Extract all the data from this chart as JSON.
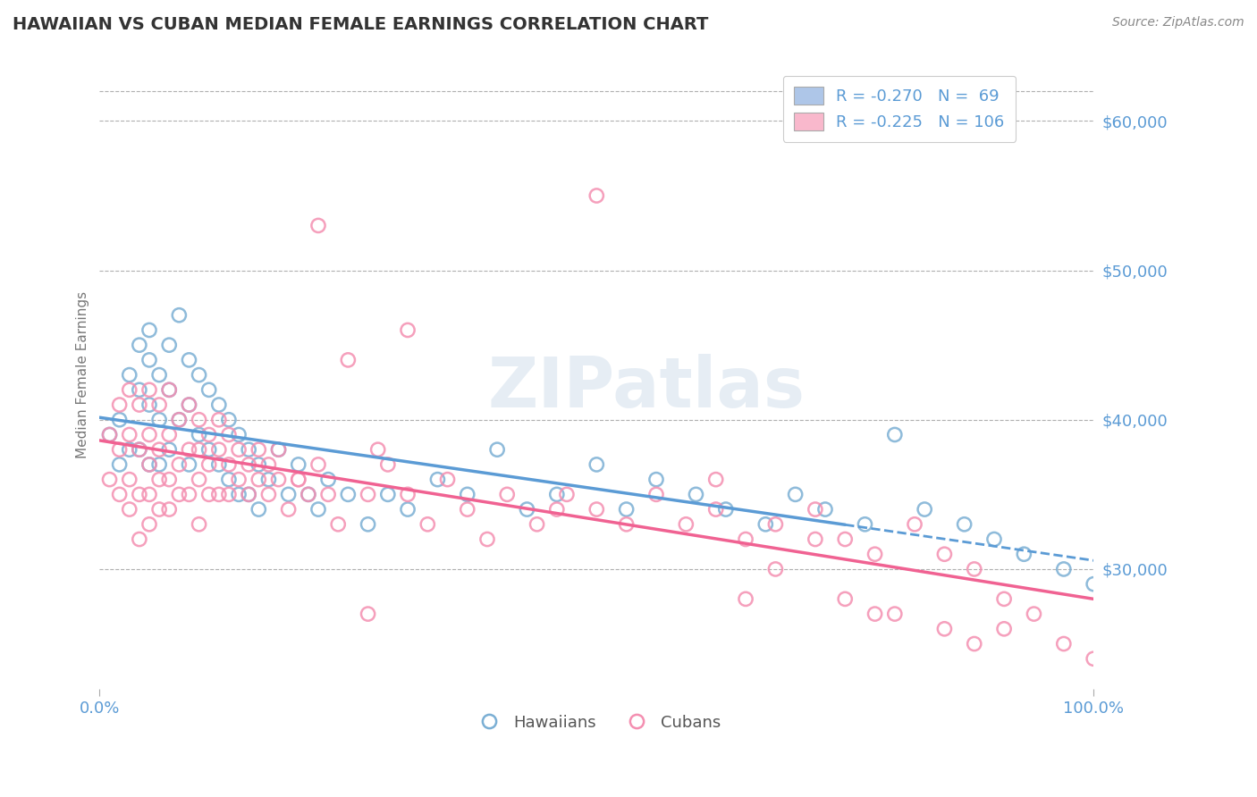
{
  "title": "HAWAIIAN VS CUBAN MEDIAN FEMALE EARNINGS CORRELATION CHART",
  "source": "Source: ZipAtlas.com",
  "ylabel": "Median Female Earnings",
  "xlim": [
    0,
    1
  ],
  "ylim": [
    22000,
    64000
  ],
  "yticks": [
    30000,
    40000,
    50000,
    60000
  ],
  "ytick_labels": [
    "$30,000",
    "$40,000",
    "$50,000",
    "$60,000"
  ],
  "xtick_labels": [
    "0.0%",
    "100.0%"
  ],
  "watermark": "ZIPatlas",
  "legend_entry_1": "R = -0.270   N =  69",
  "legend_entry_2": "R = -0.225   N = 106",
  "legend_color_1": "#aec6e8",
  "legend_color_2": "#f9b8cc",
  "hawaiian_color": "#7bafd4",
  "cuban_color": "#f48fb1",
  "trend_color_hawaiian": "#5b9bd5",
  "trend_color_cuban": "#f06292",
  "background_color": "#ffffff",
  "grid_color": "#b0b0b0",
  "axis_label_color": "#5b9bd5",
  "source_color": "#888888",
  "title_color": "#333333",
  "ylabel_color": "#777777",
  "hawaiian_x": [
    0.01,
    0.02,
    0.02,
    0.03,
    0.03,
    0.04,
    0.04,
    0.04,
    0.05,
    0.05,
    0.05,
    0.05,
    0.06,
    0.06,
    0.06,
    0.07,
    0.07,
    0.07,
    0.08,
    0.08,
    0.09,
    0.09,
    0.09,
    0.1,
    0.1,
    0.11,
    0.11,
    0.12,
    0.12,
    0.13,
    0.13,
    0.14,
    0.14,
    0.15,
    0.15,
    0.16,
    0.16,
    0.17,
    0.18,
    0.19,
    0.2,
    0.21,
    0.22,
    0.23,
    0.25,
    0.27,
    0.29,
    0.31,
    0.34,
    0.37,
    0.4,
    0.43,
    0.46,
    0.5,
    0.53,
    0.56,
    0.6,
    0.63,
    0.67,
    0.7,
    0.73,
    0.77,
    0.8,
    0.83,
    0.87,
    0.9,
    0.93,
    0.97,
    1.0
  ],
  "hawaiian_y": [
    39000,
    40000,
    37000,
    43000,
    38000,
    45000,
    42000,
    38000,
    46000,
    44000,
    41000,
    37000,
    43000,
    40000,
    37000,
    45000,
    42000,
    38000,
    47000,
    40000,
    44000,
    41000,
    37000,
    43000,
    39000,
    42000,
    38000,
    41000,
    37000,
    40000,
    36000,
    39000,
    35000,
    38000,
    35000,
    37000,
    34000,
    36000,
    38000,
    35000,
    37000,
    35000,
    34000,
    36000,
    35000,
    33000,
    35000,
    34000,
    36000,
    35000,
    38000,
    34000,
    35000,
    37000,
    34000,
    36000,
    35000,
    34000,
    33000,
    35000,
    34000,
    33000,
    39000,
    34000,
    33000,
    32000,
    31000,
    30000,
    29000
  ],
  "cuban_x": [
    0.01,
    0.01,
    0.02,
    0.02,
    0.02,
    0.03,
    0.03,
    0.03,
    0.03,
    0.04,
    0.04,
    0.04,
    0.04,
    0.05,
    0.05,
    0.05,
    0.05,
    0.05,
    0.06,
    0.06,
    0.06,
    0.06,
    0.07,
    0.07,
    0.07,
    0.07,
    0.08,
    0.08,
    0.08,
    0.09,
    0.09,
    0.09,
    0.1,
    0.1,
    0.1,
    0.1,
    0.11,
    0.11,
    0.11,
    0.12,
    0.12,
    0.12,
    0.13,
    0.13,
    0.13,
    0.14,
    0.14,
    0.15,
    0.15,
    0.16,
    0.16,
    0.17,
    0.17,
    0.18,
    0.18,
    0.19,
    0.2,
    0.21,
    0.22,
    0.23,
    0.24,
    0.25,
    0.27,
    0.29,
    0.31,
    0.33,
    0.35,
    0.37,
    0.39,
    0.41,
    0.44,
    0.47,
    0.5,
    0.53,
    0.56,
    0.59,
    0.62,
    0.65,
    0.68,
    0.72,
    0.75,
    0.78,
    0.82,
    0.85,
    0.88,
    0.91,
    0.5,
    0.22,
    0.31,
    0.2,
    0.27,
    0.28,
    0.46,
    0.62,
    0.65,
    0.68,
    0.72,
    0.75,
    0.8,
    0.85,
    0.88,
    0.91,
    0.94,
    0.97,
    1.0,
    0.78
  ],
  "cuban_y": [
    39000,
    36000,
    41000,
    38000,
    35000,
    42000,
    39000,
    36000,
    34000,
    41000,
    38000,
    35000,
    32000,
    42000,
    39000,
    37000,
    35000,
    33000,
    41000,
    38000,
    36000,
    34000,
    42000,
    39000,
    36000,
    34000,
    40000,
    37000,
    35000,
    41000,
    38000,
    35000,
    40000,
    38000,
    36000,
    33000,
    39000,
    37000,
    35000,
    40000,
    38000,
    35000,
    39000,
    37000,
    35000,
    38000,
    36000,
    37000,
    35000,
    38000,
    36000,
    37000,
    35000,
    38000,
    36000,
    34000,
    36000,
    35000,
    37000,
    35000,
    33000,
    44000,
    35000,
    37000,
    35000,
    33000,
    36000,
    34000,
    32000,
    35000,
    33000,
    35000,
    34000,
    33000,
    35000,
    33000,
    34000,
    32000,
    33000,
    34000,
    32000,
    31000,
    33000,
    31000,
    30000,
    28000,
    55000,
    53000,
    46000,
    36000,
    27000,
    38000,
    34000,
    36000,
    28000,
    30000,
    32000,
    28000,
    27000,
    26000,
    25000,
    26000,
    27000,
    25000,
    24000,
    27000
  ]
}
